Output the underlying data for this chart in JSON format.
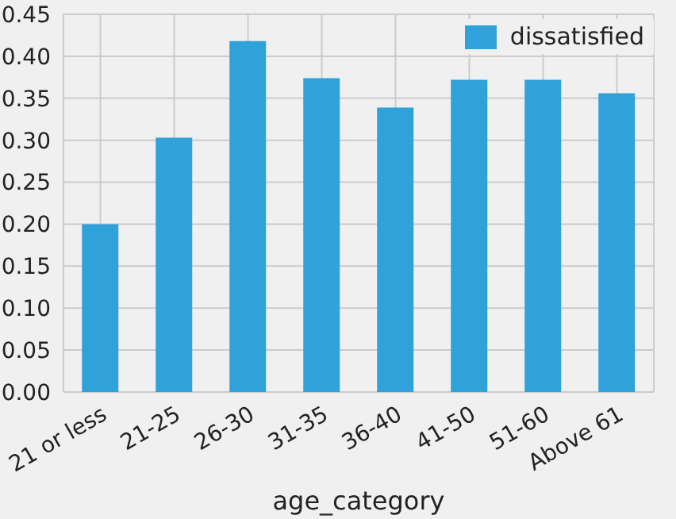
{
  "chart_data": {
    "type": "bar",
    "xlabel": "age_category",
    "categories": [
      "21 or less",
      "21-25",
      "26-30",
      "31-35",
      "36-40",
      "41-50",
      "51-60",
      "Above 61"
    ],
    "series": [
      {
        "name": "dissatisfied",
        "color": "#30a2da",
        "values": [
          0.2,
          0.303,
          0.418,
          0.374,
          0.339,
          0.372,
          0.372,
          0.356
        ]
      }
    ],
    "ylim": [
      0,
      0.45
    ],
    "yticks": [
      {
        "value": 0,
        "label": "0.00"
      },
      {
        "value": 0.05,
        "label": "0.05"
      },
      {
        "value": 0.1,
        "label": "0.10"
      },
      {
        "value": 0.15,
        "label": "0.15"
      },
      {
        "value": 0.2,
        "label": "0.20"
      },
      {
        "value": 0.25,
        "label": "0.25"
      },
      {
        "value": 0.3,
        "label": "0.30"
      },
      {
        "value": 0.35,
        "label": "0.35"
      },
      {
        "value": 0.4,
        "label": "0.40"
      },
      {
        "value": 0.45,
        "label": "0.45"
      }
    ],
    "grid": true,
    "legend": "top right"
  }
}
